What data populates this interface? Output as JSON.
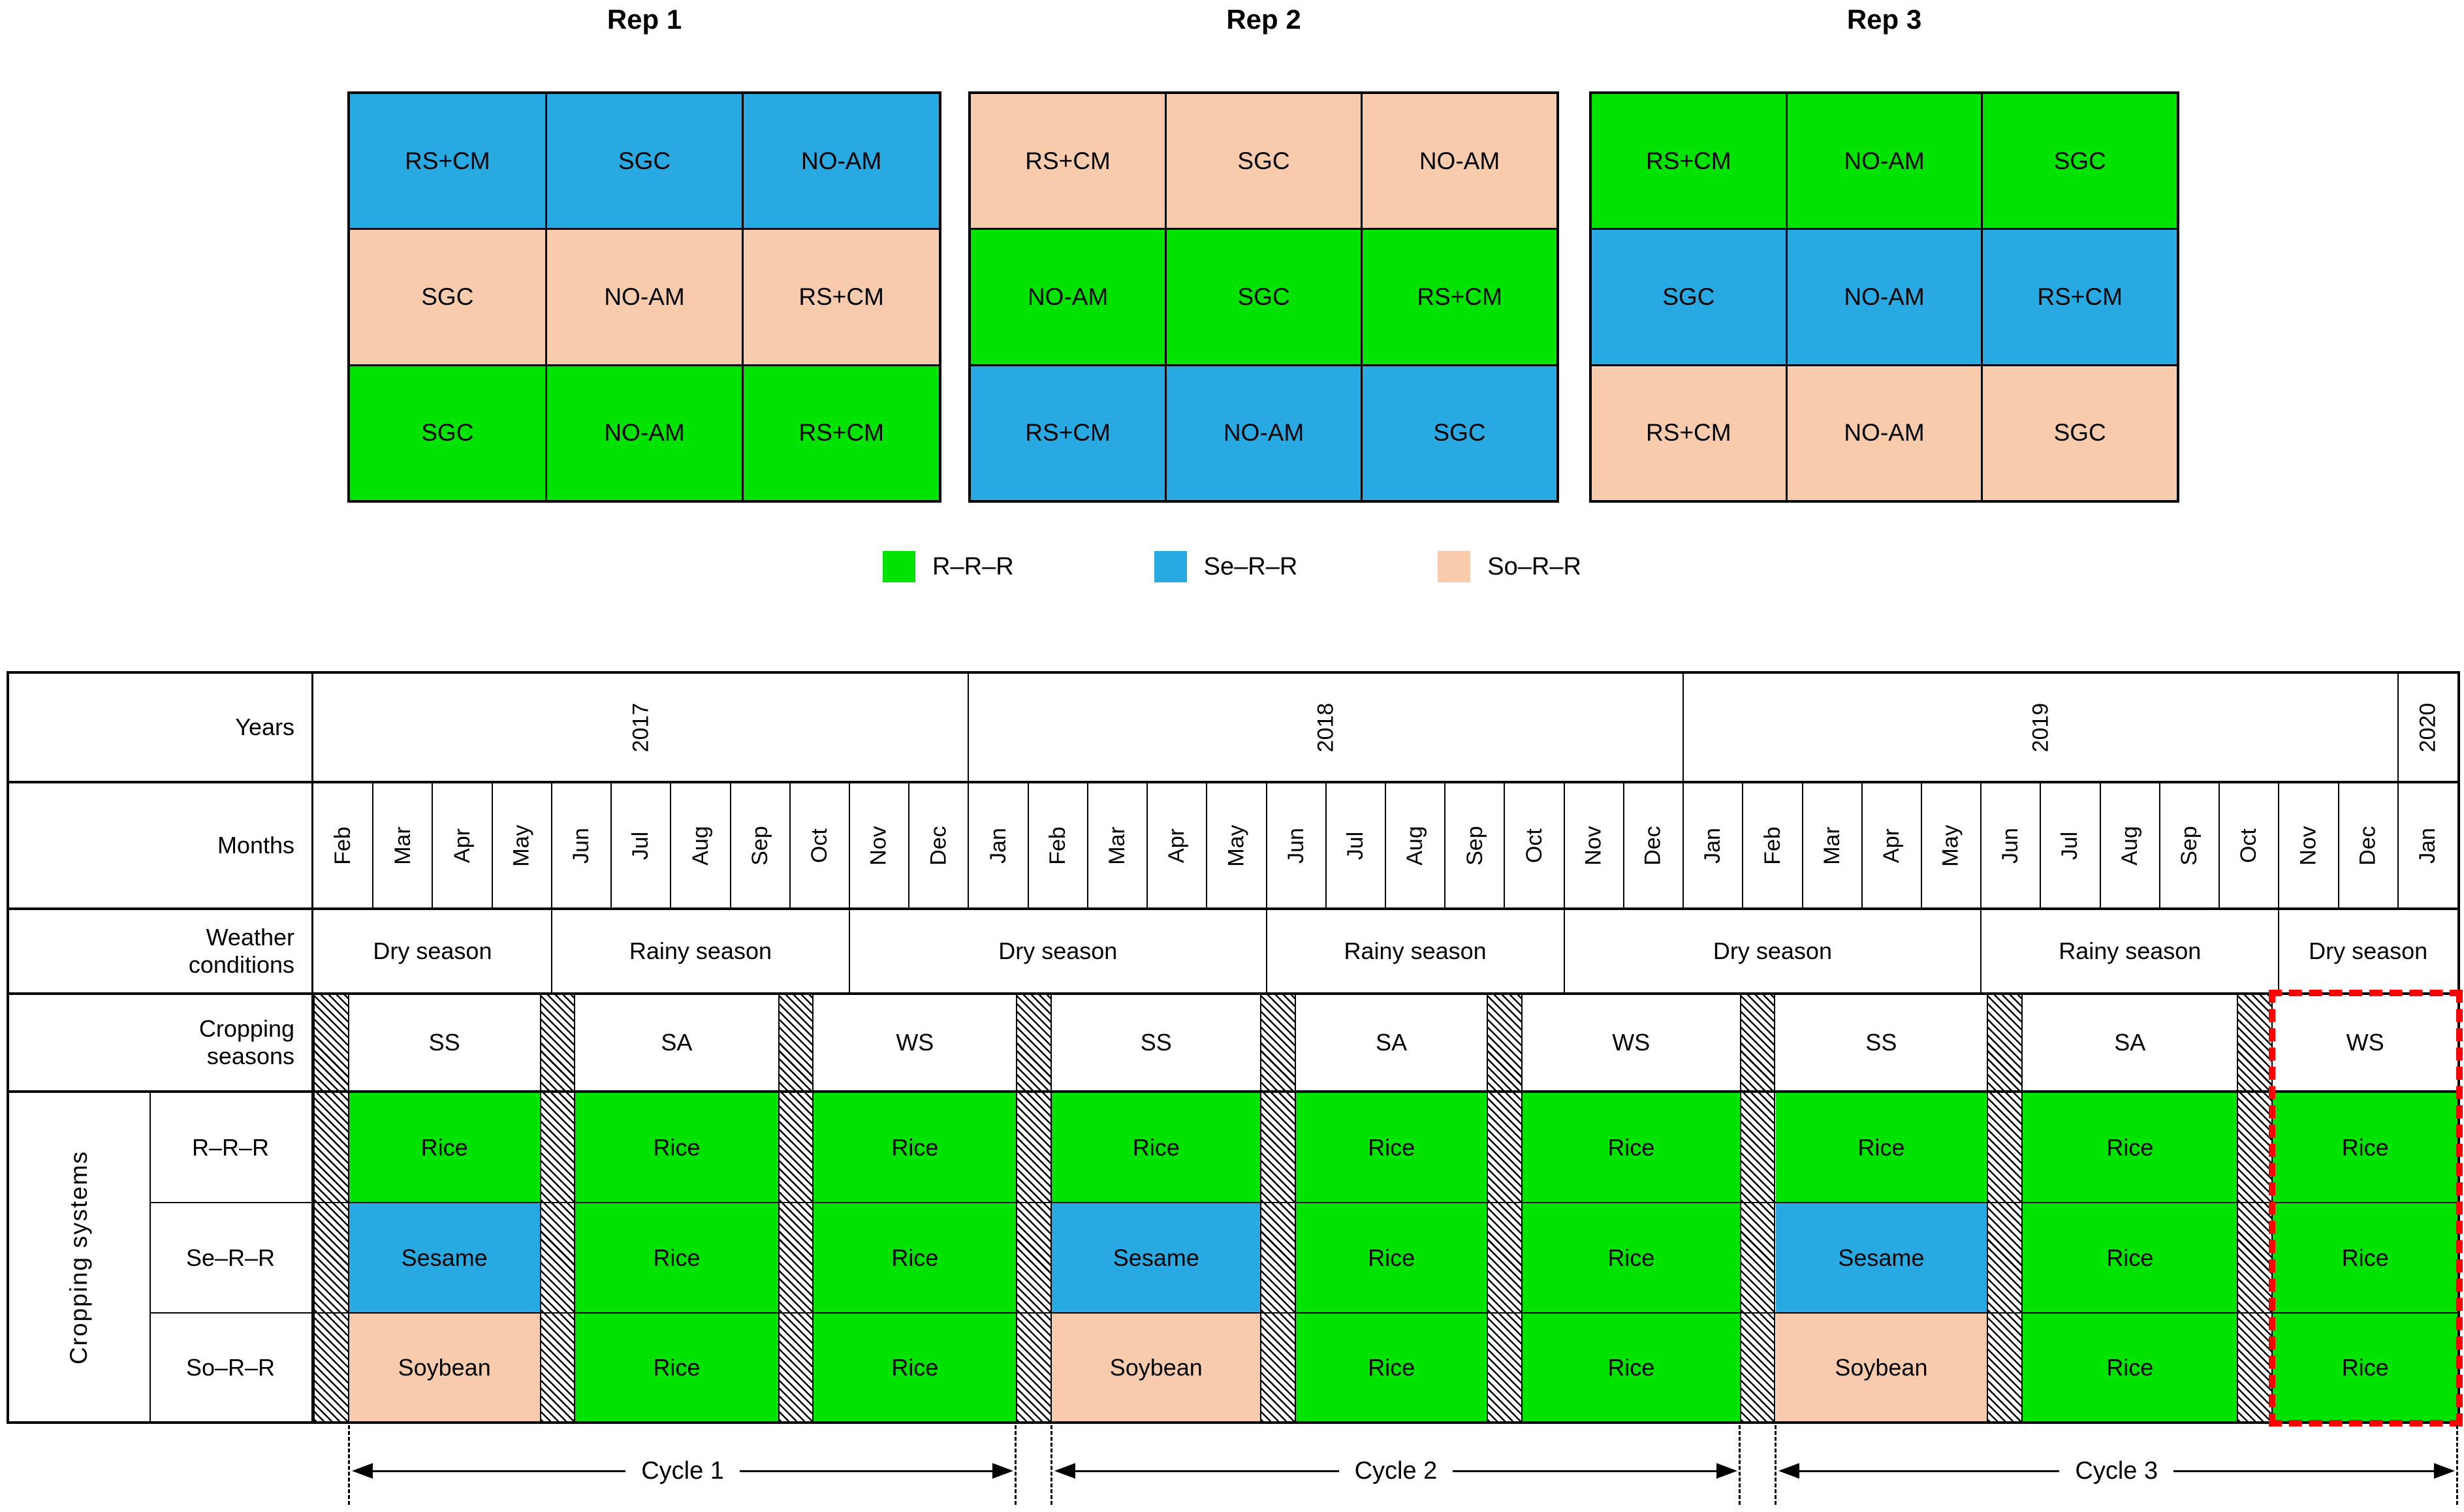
{
  "colors": {
    "green": "#00E300",
    "blue": "#29A9E1",
    "peach": "#F8CBAD",
    "highlight_red": "#FF0000"
  },
  "reps": [
    {
      "title": "Rep 1",
      "rows": [
        {
          "color": "blue",
          "cells": [
            "RS+CM",
            "SGC",
            "NO-AM"
          ]
        },
        {
          "color": "peach",
          "cells": [
            "SGC",
            "NO-AM",
            "RS+CM"
          ]
        },
        {
          "color": "green",
          "cells": [
            "SGC",
            "NO-AM",
            "RS+CM"
          ]
        }
      ]
    },
    {
      "title": "Rep 2",
      "rows": [
        {
          "color": "peach",
          "cells": [
            "RS+CM",
            "SGC",
            "NO-AM"
          ]
        },
        {
          "color": "green",
          "cells": [
            "NO-AM",
            "SGC",
            "RS+CM"
          ]
        },
        {
          "color": "blue",
          "cells": [
            "RS+CM",
            "NO-AM",
            "SGC"
          ]
        }
      ]
    },
    {
      "title": "Rep 3",
      "rows": [
        {
          "color": "green",
          "cells": [
            "RS+CM",
            "NO-AM",
            "SGC"
          ]
        },
        {
          "color": "blue",
          "cells": [
            "SGC",
            "NO-AM",
            "RS+CM"
          ]
        },
        {
          "color": "peach",
          "cells": [
            "RS+CM",
            "NO-AM",
            "SGC"
          ]
        }
      ]
    }
  ],
  "legend": [
    {
      "color": "green",
      "label": "R–R–R"
    },
    {
      "color": "blue",
      "label": "Se–R–R"
    },
    {
      "color": "peach",
      "label": "So–R–R"
    }
  ],
  "table": {
    "row_labels": {
      "years": "Years",
      "months": "Months",
      "weather": "Weather\nconditions",
      "seasons": "Cropping\nseasons",
      "systems": "Cropping systems"
    },
    "years": [
      {
        "label": "2017",
        "start": 0,
        "end": 11
      },
      {
        "label": "2018",
        "start": 11,
        "end": 23
      },
      {
        "label": "2019",
        "start": 23,
        "end": 35
      },
      {
        "label": "2020",
        "start": 35,
        "end": 36
      }
    ],
    "months": [
      "Feb",
      "Mar",
      "Apr",
      "May",
      "Jun",
      "Jul",
      "Aug",
      "Sep",
      "Oct",
      "Nov",
      "Dec",
      "Jan",
      "Feb",
      "Mar",
      "Apr",
      "May",
      "Jun",
      "Jul",
      "Aug",
      "Sep",
      "Oct",
      "Nov",
      "Dec",
      "Jan",
      "Feb",
      "Mar",
      "Apr",
      "May",
      "Jun",
      "Jul",
      "Aug",
      "Sep",
      "Oct",
      "Nov",
      "Dec",
      "Jan"
    ],
    "weather": [
      {
        "label": "Dry season",
        "start": 0,
        "end": 4
      },
      {
        "label": "Rainy season",
        "start": 4,
        "end": 9
      },
      {
        "label": "Dry season",
        "start": 9,
        "end": 16
      },
      {
        "label": "Rainy season",
        "start": 16,
        "end": 21
      },
      {
        "label": "Dry season",
        "start": 21,
        "end": 28
      },
      {
        "label": "Rainy season",
        "start": 28,
        "end": 33
      },
      {
        "label": "Dry season",
        "start": 33,
        "end": 36
      }
    ],
    "hatches": [
      [
        0,
        0.6
      ],
      [
        3.8,
        4.4
      ],
      [
        7.8,
        8.4
      ],
      [
        11.8,
        12.4
      ],
      [
        15.9,
        16.5
      ],
      [
        19.7,
        20.3
      ],
      [
        23.95,
        24.55
      ],
      [
        28.1,
        28.7
      ],
      [
        32.3,
        32.9
      ]
    ],
    "seasons": [
      {
        "label": "SS",
        "start": 0.6,
        "end": 3.8
      },
      {
        "label": "SA",
        "start": 4.4,
        "end": 7.8
      },
      {
        "label": "WS",
        "start": 8.4,
        "end": 11.8
      },
      {
        "label": "SS",
        "start": 12.4,
        "end": 15.9
      },
      {
        "label": "SA",
        "start": 16.5,
        "end": 19.7
      },
      {
        "label": "WS",
        "start": 20.3,
        "end": 23.95
      },
      {
        "label": "SS",
        "start": 24.55,
        "end": 28.1
      },
      {
        "label": "SA",
        "start": 28.7,
        "end": 32.3
      },
      {
        "label": "WS",
        "start": 32.9,
        "end": 36
      }
    ],
    "systems": [
      {
        "label": "R–R–R",
        "crops": [
          {
            "label": "Rice",
            "color": "green"
          },
          {
            "label": "Rice",
            "color": "green"
          },
          {
            "label": "Rice",
            "color": "green"
          },
          {
            "label": "Rice",
            "color": "green"
          },
          {
            "label": "Rice",
            "color": "green"
          },
          {
            "label": "Rice",
            "color": "green"
          },
          {
            "label": "Rice",
            "color": "green"
          },
          {
            "label": "Rice",
            "color": "green"
          },
          {
            "label": "Rice",
            "color": "green"
          }
        ]
      },
      {
        "label": "Se–R–R",
        "crops": [
          {
            "label": "Sesame",
            "color": "blue"
          },
          {
            "label": "Rice",
            "color": "green"
          },
          {
            "label": "Rice",
            "color": "green"
          },
          {
            "label": "Sesame",
            "color": "blue"
          },
          {
            "label": "Rice",
            "color": "green"
          },
          {
            "label": "Rice",
            "color": "green"
          },
          {
            "label": "Sesame",
            "color": "blue"
          },
          {
            "label": "Rice",
            "color": "green"
          },
          {
            "label": "Rice",
            "color": "green"
          }
        ]
      },
      {
        "label": "So–R–R",
        "crops": [
          {
            "label": "Soybean",
            "color": "peach"
          },
          {
            "label": "Rice",
            "color": "green"
          },
          {
            "label": "Rice",
            "color": "green"
          },
          {
            "label": "Soybean",
            "color": "peach"
          },
          {
            "label": "Rice",
            "color": "green"
          },
          {
            "label": "Rice",
            "color": "green"
          },
          {
            "label": "Soybean",
            "color": "peach"
          },
          {
            "label": "Rice",
            "color": "green"
          },
          {
            "label": "Rice",
            "color": "green"
          }
        ]
      }
    ],
    "cycles": [
      {
        "label": "Cycle 1",
        "start": 0.6,
        "end": 11.8
      },
      {
        "label": "Cycle 2",
        "start": 12.4,
        "end": 23.95
      },
      {
        "label": "Cycle 3",
        "start": 24.55,
        "end": 36
      }
    ],
    "highlight": {
      "start": 32.9,
      "end": 36
    }
  }
}
